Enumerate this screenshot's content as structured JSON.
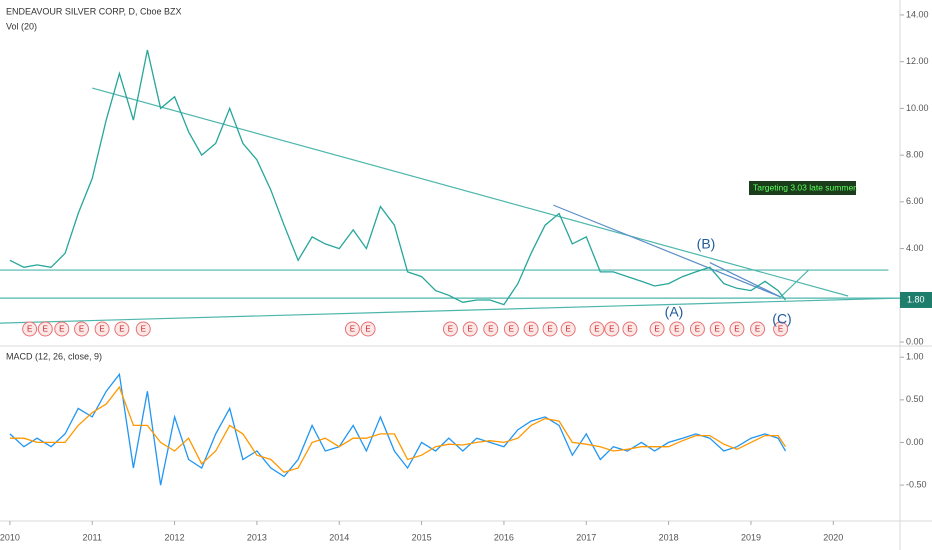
{
  "chart_data": [
    {
      "type": "line",
      "title": "ENDEAVOUR SILVER CORP, D, Cboe BZX",
      "subtitle": "Vol (20)",
      "x": [
        2010,
        2010.17,
        2010.33,
        2010.5,
        2010.67,
        2010.83,
        2011,
        2011.17,
        2011.33,
        2011.5,
        2011.67,
        2011.83,
        2012,
        2012.17,
        2012.33,
        2012.5,
        2012.67,
        2012.83,
        2013,
        2013.17,
        2013.33,
        2013.5,
        2013.67,
        2013.83,
        2014,
        2014.17,
        2014.33,
        2014.5,
        2014.67,
        2014.83,
        2015,
        2015.17,
        2015.33,
        2015.5,
        2015.67,
        2015.83,
        2016,
        2016.17,
        2016.33,
        2016.5,
        2016.67,
        2016.83,
        2017,
        2017.17,
        2017.33,
        2017.5,
        2017.67,
        2017.83,
        2018,
        2018.17,
        2018.33,
        2018.5,
        2018.67,
        2018.83,
        2019,
        2019.17,
        2019.33,
        2019.42
      ],
      "series": [
        {
          "color": "#26a69a",
          "values": [
            3.5,
            3.2,
            3.3,
            3.2,
            3.8,
            5.5,
            7.0,
            9.5,
            11.5,
            9.5,
            12.5,
            10.0,
            10.5,
            9.0,
            8.0,
            8.5,
            10.0,
            8.5,
            7.8,
            6.5,
            5.0,
            3.5,
            4.5,
            4.2,
            4.0,
            4.8,
            4.0,
            5.8,
            5.0,
            3.0,
            2.8,
            2.2,
            2.0,
            1.7,
            1.8,
            1.8,
            1.6,
            2.5,
            3.8,
            5.0,
            5.5,
            4.2,
            4.5,
            3.0,
            3.0,
            2.8,
            2.6,
            2.4,
            2.5,
            2.8,
            3.0,
            3.2,
            2.5,
            2.3,
            2.2,
            2.6,
            2.2,
            1.8
          ]
        }
      ],
      "xlim": [
        2009.88,
        2020.81
      ],
      "ylim": [
        -0.17,
        14.64
      ],
      "yticks": [
        {
          "value": 0,
          "label": "0.00"
        },
        {
          "value": 4,
          "label": "4.00"
        },
        {
          "value": 6,
          "label": "6.00"
        },
        {
          "value": 8,
          "label": "8.00"
        },
        {
          "value": 10,
          "label": "10.00"
        },
        {
          "value": 12,
          "label": "12.00"
        },
        {
          "value": 14,
          "label": "14.00"
        }
      ],
      "last_price": {
        "value": 1.8,
        "label": "1.80"
      },
      "trend_lines": [
        {
          "color": "#4db6ac",
          "x": [
            2011.0,
            2020.18
          ],
          "y": [
            10.87,
            1.97
          ]
        },
        {
          "color": "#4db6ac",
          "x": [
            2009.88,
            2020.67
          ],
          "y": [
            3.08,
            3.08
          ]
        },
        {
          "color": "#4db6ac",
          "x": [
            2009.88,
            2020.81
          ],
          "y": [
            1.88,
            1.88
          ]
        },
        {
          "color": "#4db6ac",
          "x": [
            2009.88,
            2020.81
          ],
          "y": [
            0.81,
            1.88
          ]
        },
        {
          "color": "#5b8dc9",
          "x": [
            2016.6,
            2019.36
          ],
          "y": [
            5.86,
            1.93
          ]
        },
        {
          "color": "#5b8dc9",
          "x": [
            2018.5,
            2019.36
          ],
          "y": [
            3.4,
            1.93
          ]
        },
        {
          "color": "#4db6ac",
          "x": [
            2019.36,
            2019.7
          ],
          "y": [
            1.93,
            3.08
          ]
        }
      ],
      "earnings": {
        "label": "E",
        "x": [
          2010.24,
          2010.43,
          2010.63,
          2010.87,
          2011.12,
          2011.36,
          2011.62,
          2014.16,
          2014.35,
          2015.35,
          2015.59,
          2015.84,
          2016.09,
          2016.33,
          2016.56,
          2016.78,
          2017.13,
          2017.31,
          2017.53,
          2017.86,
          2018.1,
          2018.35,
          2018.59,
          2018.83,
          2019.08,
          2019.36
        ]
      },
      "annotations": [
        "Targeting 3.03 late summer.",
        "(A)",
        "(B)",
        "(C)"
      ]
    },
    {
      "type": "line",
      "title": "MACD (12, 26, close, 9)",
      "x": [
        2010,
        2010.17,
        2010.33,
        2010.5,
        2010.67,
        2010.83,
        2011,
        2011.17,
        2011.33,
        2011.5,
        2011.67,
        2011.83,
        2012,
        2012.17,
        2012.33,
        2012.5,
        2012.67,
        2012.83,
        2013,
        2013.17,
        2013.33,
        2013.5,
        2013.67,
        2013.83,
        2014,
        2014.17,
        2014.33,
        2014.5,
        2014.67,
        2014.83,
        2015,
        2015.17,
        2015.33,
        2015.5,
        2015.67,
        2015.83,
        2016,
        2016.17,
        2016.33,
        2016.5,
        2016.67,
        2016.83,
        2017,
        2017.17,
        2017.33,
        2017.5,
        2017.67,
        2017.83,
        2018,
        2018.17,
        2018.33,
        2018.5,
        2018.67,
        2018.83,
        2019,
        2019.17,
        2019.33,
        2019.42
      ],
      "series": [
        {
          "color": "#2196f3",
          "values": [
            0.1,
            -0.05,
            0.05,
            -0.05,
            0.1,
            0.4,
            0.3,
            0.6,
            0.8,
            -0.3,
            0.6,
            -0.5,
            0.3,
            -0.2,
            -0.3,
            0.1,
            0.4,
            -0.2,
            -0.1,
            -0.3,
            -0.4,
            -0.2,
            0.2,
            -0.1,
            -0.05,
            0.2,
            -0.1,
            0.3,
            -0.1,
            -0.3,
            0.0,
            -0.1,
            0.05,
            -0.1,
            0.05,
            0.0,
            -0.05,
            0.15,
            0.25,
            0.3,
            0.2,
            -0.15,
            0.1,
            -0.2,
            -0.05,
            -0.1,
            0.0,
            -0.1,
            0.0,
            0.05,
            0.1,
            0.05,
            -0.1,
            -0.05,
            0.05,
            0.1,
            0.05,
            -0.1
          ]
        },
        {
          "color": "#ff9800",
          "values": [
            0.05,
            0.05,
            0.0,
            0.0,
            0.0,
            0.2,
            0.35,
            0.45,
            0.65,
            0.2,
            0.2,
            0.0,
            -0.1,
            0.05,
            -0.25,
            -0.1,
            0.2,
            0.1,
            -0.15,
            -0.2,
            -0.35,
            -0.3,
            0.0,
            0.05,
            -0.05,
            0.05,
            0.05,
            0.1,
            0.1,
            -0.2,
            -0.15,
            -0.05,
            -0.02,
            -0.03,
            0.0,
            0.02,
            0.0,
            0.05,
            0.2,
            0.28,
            0.25,
            0.0,
            -0.02,
            -0.05,
            -0.1,
            -0.08,
            -0.05,
            -0.05,
            -0.05,
            0.02,
            0.08,
            0.08,
            -0.02,
            -0.08,
            0.0,
            0.08,
            0.08,
            -0.05
          ]
        }
      ],
      "xlim": [
        2009.88,
        2020.81
      ],
      "ylim": [
        -0.91,
        1.12
      ],
      "yticks": [
        {
          "value": 1,
          "label": "1.00"
        },
        {
          "value": 0.5,
          "label": "0.50"
        },
        {
          "value": 0,
          "label": "0.00"
        },
        {
          "value": -0.5,
          "label": "-0.50"
        }
      ],
      "xticks": [
        2010,
        2011,
        2012,
        2013,
        2014,
        2015,
        2016,
        2017,
        2018,
        2019,
        2020
      ]
    }
  ]
}
